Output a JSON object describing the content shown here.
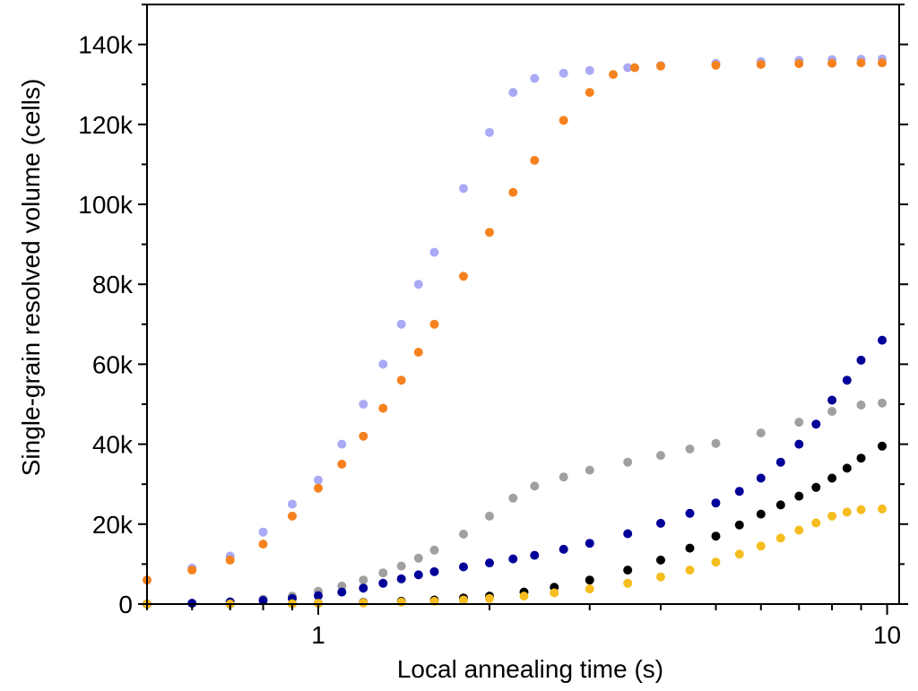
{
  "chart_data": {
    "type": "scatter",
    "title": "",
    "xlabel": "Local annealing time (s)",
    "ylabel": "Single-grain resolved volume (cells)",
    "xscale": "log",
    "xlim": [
      0.5,
      10.5
    ],
    "ylim": [
      0,
      150000
    ],
    "grid": false,
    "legend": "none",
    "x_ticks": [
      {
        "value": 1,
        "label": "1"
      },
      {
        "value": 10,
        "label": "10"
      }
    ],
    "y_ticks": [
      {
        "value": 0,
        "label": "0"
      },
      {
        "value": 20000,
        "label": "20k"
      },
      {
        "value": 40000,
        "label": "40k"
      },
      {
        "value": 60000,
        "label": "60k"
      },
      {
        "value": 80000,
        "label": "80k"
      },
      {
        "value": 100000,
        "label": "100k"
      },
      {
        "value": 120000,
        "label": "120k"
      },
      {
        "value": 140000,
        "label": "140k"
      }
    ],
    "series": [
      {
        "color": "#a9a9f5",
        "points": [
          [
            0.5,
            6000
          ],
          [
            0.6,
            9000
          ],
          [
            0.7,
            12000
          ],
          [
            0.8,
            18000
          ],
          [
            0.9,
            25000
          ],
          [
            1.0,
            31000
          ],
          [
            1.1,
            40000
          ],
          [
            1.2,
            50000
          ],
          [
            1.3,
            60000
          ],
          [
            1.4,
            70000
          ],
          [
            1.5,
            80000
          ],
          [
            1.6,
            88000
          ],
          [
            1.8,
            104000
          ],
          [
            2.0,
            118000
          ],
          [
            2.2,
            128000
          ],
          [
            2.4,
            131500
          ],
          [
            2.7,
            132800
          ],
          [
            3.0,
            133500
          ],
          [
            3.5,
            134200
          ],
          [
            4.0,
            134700
          ],
          [
            5.0,
            135300
          ],
          [
            6.0,
            135700
          ],
          [
            7.0,
            136000
          ],
          [
            8.0,
            136200
          ],
          [
            9.0,
            136300
          ],
          [
            9.8,
            136400
          ]
        ]
      },
      {
        "color": "#f5821f",
        "points": [
          [
            0.5,
            6000
          ],
          [
            0.6,
            8500
          ],
          [
            0.7,
            11000
          ],
          [
            0.8,
            15000
          ],
          [
            0.9,
            22000
          ],
          [
            1.0,
            29000
          ],
          [
            1.1,
            35000
          ],
          [
            1.2,
            42000
          ],
          [
            1.3,
            49000
          ],
          [
            1.4,
            56000
          ],
          [
            1.5,
            63000
          ],
          [
            1.6,
            70000
          ],
          [
            1.8,
            82000
          ],
          [
            2.0,
            93000
          ],
          [
            2.2,
            103000
          ],
          [
            2.4,
            111000
          ],
          [
            2.7,
            121000
          ],
          [
            3.0,
            128000
          ],
          [
            3.3,
            132500
          ],
          [
            3.6,
            134200
          ],
          [
            4.0,
            134600
          ],
          [
            5.0,
            134800
          ],
          [
            6.0,
            135000
          ],
          [
            7.0,
            135200
          ],
          [
            8.0,
            135300
          ],
          [
            9.0,
            135400
          ],
          [
            9.8,
            135400
          ]
        ]
      },
      {
        "color": "#a0a0a0",
        "points": [
          [
            0.5,
            0
          ],
          [
            0.6,
            200
          ],
          [
            0.7,
            600
          ],
          [
            0.8,
            1200
          ],
          [
            0.9,
            2000
          ],
          [
            1.0,
            3200
          ],
          [
            1.1,
            4500
          ],
          [
            1.2,
            6000
          ],
          [
            1.3,
            7800
          ],
          [
            1.4,
            9500
          ],
          [
            1.5,
            11500
          ],
          [
            1.6,
            13500
          ],
          [
            1.8,
            17500
          ],
          [
            2.0,
            22000
          ],
          [
            2.2,
            26500
          ],
          [
            2.4,
            29500
          ],
          [
            2.7,
            31800
          ],
          [
            3.0,
            33500
          ],
          [
            3.5,
            35500
          ],
          [
            4.0,
            37200
          ],
          [
            4.5,
            38800
          ],
          [
            5.0,
            40200
          ],
          [
            6.0,
            42800
          ],
          [
            7.0,
            45500
          ],
          [
            8.0,
            48200
          ],
          [
            9.0,
            49800
          ],
          [
            9.8,
            50300
          ]
        ]
      },
      {
        "color": "#000099",
        "points": [
          [
            0.5,
            0
          ],
          [
            0.6,
            200
          ],
          [
            0.7,
            500
          ],
          [
            0.8,
            900
          ],
          [
            0.9,
            1400
          ],
          [
            1.0,
            2100
          ],
          [
            1.1,
            3000
          ],
          [
            1.2,
            4000
          ],
          [
            1.3,
            5200
          ],
          [
            1.4,
            6300
          ],
          [
            1.5,
            7300
          ],
          [
            1.6,
            8100
          ],
          [
            1.8,
            9300
          ],
          [
            2.0,
            10300
          ],
          [
            2.2,
            11300
          ],
          [
            2.4,
            12200
          ],
          [
            2.7,
            13700
          ],
          [
            3.0,
            15200
          ],
          [
            3.5,
            17600
          ],
          [
            4.0,
            20200
          ],
          [
            4.5,
            22700
          ],
          [
            5.0,
            25300
          ],
          [
            5.5,
            28200
          ],
          [
            6.0,
            31500
          ],
          [
            6.5,
            35500
          ],
          [
            7.0,
            40000
          ],
          [
            7.5,
            45000
          ],
          [
            8.0,
            51000
          ],
          [
            8.5,
            56000
          ],
          [
            9.0,
            61000
          ],
          [
            9.8,
            66000
          ]
        ]
      },
      {
        "color": "#000000",
        "points": [
          [
            0.5,
            0
          ],
          [
            0.7,
            0
          ],
          [
            0.9,
            100
          ],
          [
            1.0,
            200
          ],
          [
            1.2,
            400
          ],
          [
            1.4,
            700
          ],
          [
            1.6,
            1000
          ],
          [
            1.8,
            1500
          ],
          [
            2.0,
            2000
          ],
          [
            2.3,
            3000
          ],
          [
            2.6,
            4200
          ],
          [
            3.0,
            6000
          ],
          [
            3.5,
            8500
          ],
          [
            4.0,
            11000
          ],
          [
            4.5,
            14000
          ],
          [
            5.0,
            17000
          ],
          [
            5.5,
            19800
          ],
          [
            6.0,
            22500
          ],
          [
            6.5,
            24800
          ],
          [
            7.0,
            27000
          ],
          [
            7.5,
            29200
          ],
          [
            8.0,
            31500
          ],
          [
            8.5,
            34000
          ],
          [
            9.0,
            36500
          ],
          [
            9.8,
            39500
          ]
        ]
      },
      {
        "color": "#f5bd1f",
        "points": [
          [
            0.5,
            0
          ],
          [
            0.7,
            0
          ],
          [
            0.9,
            100
          ],
          [
            1.0,
            200
          ],
          [
            1.2,
            300
          ],
          [
            1.4,
            500
          ],
          [
            1.6,
            700
          ],
          [
            1.8,
            1000
          ],
          [
            2.0,
            1400
          ],
          [
            2.3,
            2000
          ],
          [
            2.6,
            2800
          ],
          [
            3.0,
            3800
          ],
          [
            3.5,
            5200
          ],
          [
            4.0,
            6800
          ],
          [
            4.5,
            8500
          ],
          [
            5.0,
            10500
          ],
          [
            5.5,
            12500
          ],
          [
            6.0,
            14500
          ],
          [
            6.5,
            16500
          ],
          [
            7.0,
            18500
          ],
          [
            7.5,
            20300
          ],
          [
            8.0,
            22000
          ],
          [
            8.5,
            23000
          ],
          [
            9.0,
            23600
          ],
          [
            9.8,
            23800
          ]
        ]
      }
    ]
  }
}
